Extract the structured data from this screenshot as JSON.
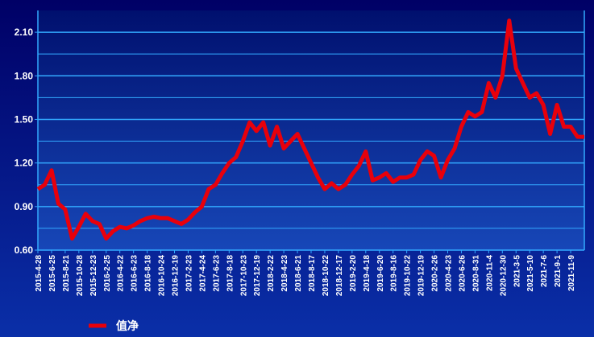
{
  "chart_data": {
    "type": "line",
    "categories": [
      "2015-4-28",
      null,
      "2015-6-25",
      null,
      "2015-8-21",
      null,
      "2015-10-28",
      null,
      "2015-12-23",
      null,
      "2016-2-25",
      null,
      "2016-4-22",
      null,
      "2016-6-23",
      null,
      "2016-8-18",
      null,
      "2016-10-24",
      null,
      "2016-12-19",
      null,
      "2017-2-23",
      null,
      "2017-4-24",
      null,
      "2017-6-23",
      null,
      "2017-8-18",
      null,
      "2017-10-23",
      null,
      "2017-12-19",
      null,
      "2018-2-22",
      null,
      "2018-4-23",
      null,
      "2018-6-21",
      null,
      "2018-8-17",
      null,
      "2018-10-22",
      null,
      "2018-12-17",
      null,
      "2019-2-20",
      null,
      "2019-4-18",
      null,
      "2019-6-20",
      null,
      "2019-8-16",
      null,
      "2019-10-22",
      null,
      "2019-12-19",
      null,
      "2020-2-26",
      null,
      "2020-4-23",
      null,
      "2020-6-26",
      null,
      "2020-8-31",
      null,
      "2020-11-4",
      null,
      "2020-12-30",
      null,
      "2021-3-5",
      null,
      "2021-5-10",
      null,
      "2021-7-6",
      null,
      "2021-9-1",
      null,
      "2021-11-9",
      null,
      null
    ],
    "series": [
      {
        "name": "值净",
        "color": "#e8000b",
        "values": [
          1.02,
          1.05,
          1.15,
          0.92,
          0.88,
          0.68,
          0.76,
          0.85,
          0.8,
          0.78,
          0.68,
          0.73,
          0.76,
          0.75,
          0.77,
          0.8,
          0.82,
          0.83,
          0.82,
          0.82,
          0.8,
          0.78,
          0.81,
          0.86,
          0.9,
          1.02,
          1.05,
          1.13,
          1.2,
          1.24,
          1.35,
          1.48,
          1.42,
          1.48,
          1.32,
          1.45,
          1.3,
          1.35,
          1.4,
          1.3,
          1.2,
          1.1,
          1.02,
          1.06,
          1.02,
          1.05,
          1.12,
          1.18,
          1.28,
          1.08,
          1.1,
          1.13,
          1.07,
          1.1,
          1.1,
          1.12,
          1.22,
          1.28,
          1.25,
          1.1,
          1.22,
          1.3,
          1.45,
          1.55,
          1.52,
          1.55,
          1.75,
          1.65,
          1.8,
          2.18,
          1.85,
          1.75,
          1.65,
          1.68,
          1.6,
          1.4,
          1.6,
          1.45,
          1.45,
          1.38,
          1.38
        ]
      }
    ],
    "ylim": [
      0.6,
      2.25
    ],
    "yticks": [
      {
        "value": 0.6,
        "label": "0.60"
      },
      {
        "value": 0.9,
        "label": "0.90"
      },
      {
        "value": 1.2,
        "label": "1.20"
      },
      {
        "value": 1.5,
        "label": "1.50"
      },
      {
        "value": 1.8,
        "label": "1.80"
      },
      {
        "value": 2.1,
        "label": "2.10"
      }
    ],
    "minor_yticks": [
      0.75,
      1.05,
      1.35,
      1.65,
      1.95
    ],
    "grid": true
  }
}
